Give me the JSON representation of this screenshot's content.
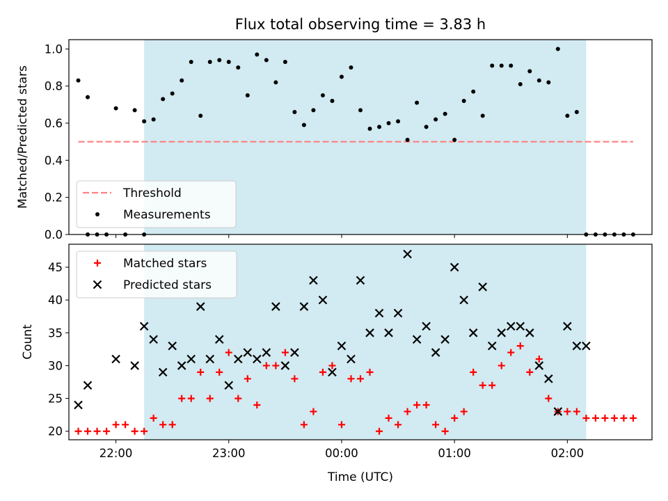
{
  "title": "Flux total observing time = 3.83 h",
  "xlabel": "Time (UTC)",
  "colors": {
    "observing_span": "#add8e6",
    "threshold": "#ff7f7f",
    "measurement": "#000000",
    "matched": "#ff0000",
    "predicted": "#000000"
  },
  "chart_data": [
    {
      "type": "scatter",
      "ylabel": "Matched/Predicted stars",
      "ylim": [
        0,
        1.05
      ],
      "yticks": [
        0.0,
        0.2,
        0.4,
        0.6,
        0.8,
        1.0
      ],
      "ytick_labels": [
        "0.0",
        "0.2",
        "0.4",
        "0.6",
        "0.8",
        "1.0"
      ],
      "xlim": [
        "21:35",
        "02:45"
      ],
      "observing_span": [
        "22:15",
        "02:10"
      ],
      "legend": {
        "location": "lower-left",
        "entries": [
          "Threshold",
          "Measurements"
        ]
      },
      "threshold": {
        "name": "Threshold",
        "value": 0.5,
        "x_range": [
          "21:40",
          "02:35"
        ]
      },
      "series": [
        {
          "name": "Measurements",
          "marker": "dot",
          "x": [
            "21:40",
            "21:45",
            "21:50",
            "21:55",
            "22:00",
            "22:05",
            "22:10",
            "22:15",
            "22:20",
            "22:25",
            "22:30",
            "22:35",
            "22:40",
            "22:45",
            "22:50",
            "22:55",
            "23:00",
            "23:05",
            "23:10",
            "23:15",
            "23:20",
            "23:25",
            "23:30",
            "23:35",
            "23:40",
            "23:45",
            "23:50",
            "23:55",
            "00:00",
            "00:05",
            "00:10",
            "00:15",
            "00:20",
            "00:25",
            "00:30",
            "00:35",
            "00:40",
            "00:45",
            "00:50",
            "00:55",
            "01:00",
            "01:05",
            "01:10",
            "01:15",
            "01:20",
            "01:25",
            "01:30",
            "01:35",
            "01:40",
            "01:45",
            "01:50",
            "01:55",
            "02:00",
            "02:05",
            "02:10",
            "02:15",
            "02:20",
            "02:25",
            "02:30",
            "02:35"
          ],
          "y": [
            0.83,
            0.74,
            0.0,
            0.0,
            0.68,
            0.0,
            0.67,
            0.61,
            0.62,
            0.73,
            0.76,
            0.83,
            0.93,
            0.64,
            0.93,
            0.94,
            0.93,
            0.9,
            0.75,
            0.97,
            0.94,
            0.82,
            0.93,
            0.66,
            0.59,
            0.67,
            0.75,
            0.72,
            0.85,
            0.9,
            0.67,
            0.57,
            0.58,
            0.6,
            0.61,
            0.51,
            0.71,
            0.58,
            0.62,
            0.65,
            0.51,
            0.72,
            0.77,
            0.64,
            0.91,
            0.91,
            0.91,
            0.81,
            0.88,
            0.83,
            0.82,
            1.0,
            0.64,
            0.66,
            0.0,
            0.0,
            0.0,
            0.0,
            0.0,
            0.0
          ],
          "extra_zero_points_x": [
            "21:45",
            "22:15"
          ]
        }
      ]
    },
    {
      "type": "scatter",
      "ylabel": "Count",
      "ylim": [
        18.7,
        48.5
      ],
      "yticks": [
        20,
        25,
        30,
        35,
        40,
        45
      ],
      "ytick_labels": [
        "20",
        "25",
        "30",
        "35",
        "40",
        "45"
      ],
      "xlim": [
        "21:35",
        "02:45"
      ],
      "xticks": [
        "22:00",
        "23:00",
        "00:00",
        "01:00",
        "02:00"
      ],
      "xtick_labels": [
        "22:00",
        "23:00",
        "00:00",
        "01:00",
        "02:00"
      ],
      "observing_span": [
        "22:15",
        "02:10"
      ],
      "legend": {
        "location": "top-left",
        "entries": [
          "Matched stars",
          "Predicted stars"
        ]
      },
      "series": [
        {
          "name": "Matched stars",
          "marker": "plus",
          "x": [
            "21:40",
            "21:45",
            "21:50",
            "21:55",
            "22:00",
            "22:05",
            "22:10",
            "22:15",
            "22:20",
            "22:25",
            "22:30",
            "22:35",
            "22:40",
            "22:45",
            "22:50",
            "22:55",
            "23:00",
            "23:05",
            "23:10",
            "23:15",
            "23:20",
            "23:25",
            "23:30",
            "23:35",
            "23:40",
            "23:45",
            "23:50",
            "23:55",
            "00:00",
            "00:05",
            "00:10",
            "00:15",
            "00:20",
            "00:25",
            "00:30",
            "00:35",
            "00:40",
            "00:45",
            "00:50",
            "00:55",
            "01:00",
            "01:05",
            "01:10",
            "01:15",
            "01:20",
            "01:25",
            "01:30",
            "01:35",
            "01:40",
            "01:45",
            "01:50",
            "01:55",
            "02:00",
            "02:05",
            "02:10",
            "02:15",
            "02:20",
            "02:25",
            "02:30",
            "02:35"
          ],
          "y": [
            20,
            20,
            20,
            20,
            21,
            21,
            20,
            20,
            22,
            21,
            21,
            25,
            25,
            29,
            25,
            29,
            32,
            25,
            28,
            24,
            30,
            30,
            32,
            28,
            21,
            23,
            29,
            30,
            21,
            28,
            28,
            29,
            20,
            22,
            21,
            23,
            24,
            24,
            21,
            20,
            22,
            23,
            29,
            27,
            27,
            30,
            32,
            33,
            29,
            31,
            25,
            23,
            23,
            23,
            22,
            22,
            22,
            22,
            22,
            22
          ]
        },
        {
          "name": "Predicted stars",
          "marker": "x",
          "x": [
            "21:40",
            "21:45",
            "22:00",
            "22:10",
            "22:15",
            "22:20",
            "22:25",
            "22:30",
            "22:35",
            "22:40",
            "22:45",
            "22:50",
            "22:55",
            "23:00",
            "23:05",
            "23:10",
            "23:15",
            "23:20",
            "23:25",
            "23:30",
            "23:35",
            "23:40",
            "23:45",
            "23:50",
            "23:55",
            "00:00",
            "00:05",
            "00:10",
            "00:15",
            "00:20",
            "00:25",
            "00:30",
            "00:35",
            "00:40",
            "00:45",
            "00:50",
            "00:55",
            "01:00",
            "01:05",
            "01:10",
            "01:15",
            "01:20",
            "01:25",
            "01:30",
            "01:35",
            "01:40",
            "01:45",
            "01:50",
            "01:55",
            "02:00",
            "02:05",
            "02:10"
          ],
          "y": [
            24,
            27,
            31,
            30,
            36,
            34,
            29,
            33,
            30,
            31,
            39,
            31,
            34,
            27,
            31,
            32,
            31,
            32,
            39,
            30,
            32,
            39,
            43,
            40,
            29,
            33,
            31,
            43,
            35,
            38,
            35,
            38,
            47,
            34,
            36,
            32,
            34,
            45,
            40,
            35,
            42,
            33,
            35,
            36,
            36,
            35,
            30,
            28,
            23,
            36,
            33,
            33
          ]
        }
      ]
    }
  ]
}
